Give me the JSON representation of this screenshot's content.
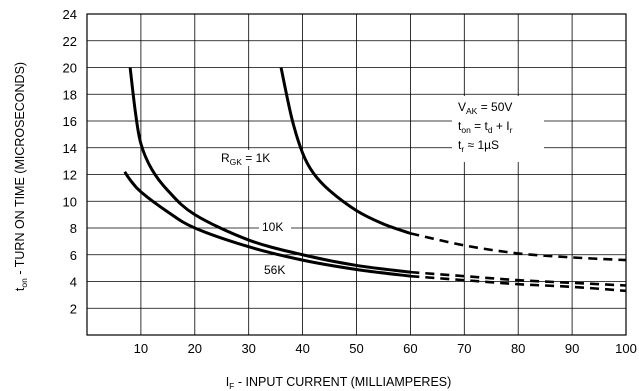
{
  "chart_data": {
    "type": "line",
    "title": "",
    "xlabel": {
      "prefix": "I",
      "sub": "F",
      "text": " - INPUT CURRENT (MILLIAMPERES)"
    },
    "ylabel": {
      "prefix": "t",
      "sub": "on",
      "text": " - TURN ON TIME (MICROSECONDS)"
    },
    "xlim": [
      0,
      100
    ],
    "ylim": [
      0,
      24
    ],
    "xticks": [
      10,
      20,
      30,
      40,
      50,
      60,
      70,
      80,
      90,
      100
    ],
    "yticks": [
      2,
      4,
      6,
      8,
      10,
      12,
      14,
      16,
      18,
      20,
      22,
      24
    ],
    "grid": true,
    "series": [
      {
        "label_parts": [
          [
            "R",
            ""
          ],
          [
            "GK",
            "sub"
          ],
          [
            " = 1K",
            ""
          ]
        ],
        "solid": [
          [
            36,
            20
          ],
          [
            38,
            16.2
          ],
          [
            40,
            13.6
          ],
          [
            42,
            12.1
          ],
          [
            45,
            10.8
          ],
          [
            50,
            9.3
          ],
          [
            55,
            8.3
          ],
          [
            60,
            7.6
          ]
        ],
        "dashed": [
          [
            60,
            7.6
          ],
          [
            70,
            6.7
          ],
          [
            80,
            6.1
          ],
          [
            90,
            5.8
          ],
          [
            100,
            5.6
          ]
        ]
      },
      {
        "label_parts": [
          [
            "10K",
            ""
          ]
        ],
        "solid": [
          [
            8,
            20
          ],
          [
            9,
            16.6
          ],
          [
            10,
            14.3
          ],
          [
            12,
            12.4
          ],
          [
            15,
            10.8
          ],
          [
            20,
            9.0
          ],
          [
            30,
            7.1
          ],
          [
            40,
            6.0
          ],
          [
            50,
            5.2
          ],
          [
            60,
            4.7
          ]
        ],
        "dashed": [
          [
            60,
            4.7
          ],
          [
            70,
            4.4
          ],
          [
            80,
            4.1
          ],
          [
            90,
            3.9
          ],
          [
            100,
            3.7
          ]
        ]
      },
      {
        "label_parts": [
          [
            "56K",
            ""
          ]
        ],
        "solid": [
          [
            7,
            12.2
          ],
          [
            8,
            11.6
          ],
          [
            10,
            10.7
          ],
          [
            15,
            9.2
          ],
          [
            20,
            8.0
          ],
          [
            30,
            6.6
          ],
          [
            40,
            5.6
          ],
          [
            50,
            4.9
          ],
          [
            60,
            4.4
          ]
        ],
        "dashed": [
          [
            60,
            4.4
          ],
          [
            70,
            4.1
          ],
          [
            80,
            3.8
          ],
          [
            90,
            3.6
          ],
          [
            100,
            3.3
          ]
        ]
      }
    ],
    "annotation_lines": [
      [
        [
          "V",
          ""
        ],
        [
          "AK",
          "sub"
        ],
        [
          " = 50V",
          ""
        ]
      ],
      [
        [
          "t",
          ""
        ],
        [
          "on",
          "sub"
        ],
        [
          " = t",
          ""
        ],
        [
          "d",
          "sub"
        ],
        [
          " + I",
          ""
        ],
        [
          "r",
          "sub"
        ]
      ],
      [
        [
          "t",
          ""
        ],
        [
          "r",
          "sub"
        ],
        [
          " ≈  1µS",
          ""
        ]
      ]
    ]
  }
}
